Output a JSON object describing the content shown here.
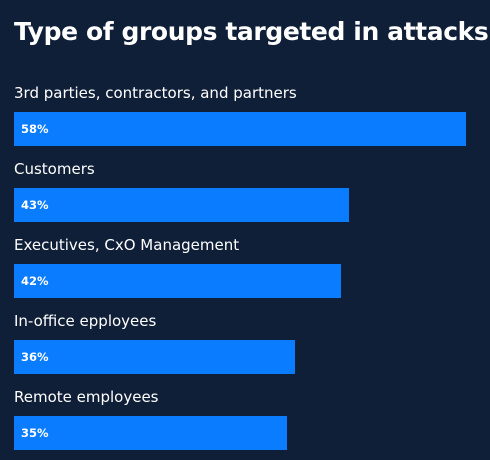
{
  "chart_data": {
    "type": "bar",
    "orientation": "horizontal",
    "title": "Type of groups targeted in attacks",
    "categories": [
      "3rd parties, contractors, and partners",
      "Customers",
      "Executives, CxO Management",
      "In-office epployees",
      "Remote employees"
    ],
    "values": [
      58,
      43,
      42,
      36,
      35
    ],
    "value_labels": [
      "58%",
      "43%",
      "42%",
      "36%",
      "35%"
    ],
    "unit": "%",
    "xlim": [
      0,
      58
    ],
    "grid": false,
    "legend": false
  },
  "colors": {
    "background": "#0f1f38",
    "bar": "#0a7cff",
    "text": "#ffffff"
  }
}
